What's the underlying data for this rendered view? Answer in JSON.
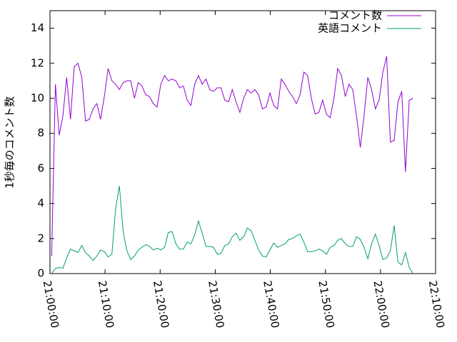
{
  "chart_data": {
    "type": "line",
    "ylabel": "1秒毎のコメント数",
    "legend": "top-right",
    "grid": false,
    "xlim": [
      75600,
      79800
    ],
    "xticks": [
      {
        "value": 75600,
        "label": "21:00:00"
      },
      {
        "value": 76200,
        "label": "21:10:00"
      },
      {
        "value": 76800,
        "label": "21:20:00"
      },
      {
        "value": 77400,
        "label": "21:30:00"
      },
      {
        "value": 78000,
        "label": "21:40:00"
      },
      {
        "value": 78600,
        "label": "21:50:00"
      },
      {
        "value": 79200,
        "label": "22:00:00"
      },
      {
        "value": 79800,
        "label": "22:10:00"
      }
    ],
    "ylim": [
      0,
      15
    ],
    "yticks": [
      0,
      2,
      4,
      6,
      8,
      10,
      12,
      14
    ],
    "x": [
      75618,
      75659,
      75700,
      75741,
      75782,
      75823,
      75864,
      75905,
      75946,
      75987,
      76028,
      76069,
      76110,
      76151,
      76192,
      76233,
      76274,
      76315,
      76356,
      76397,
      76438,
      76479,
      76520,
      76561,
      76602,
      76643,
      76684,
      76725,
      76766,
      76807,
      76848,
      76889,
      76930,
      76971,
      77012,
      77053,
      77094,
      77135,
      77176,
      77217,
      77258,
      77299,
      77340,
      77381,
      77422,
      77463,
      77504,
      77545,
      77586,
      77627,
      77668,
      77709,
      77750,
      77791,
      77832,
      77873,
      77914,
      77955,
      77996,
      78037,
      78078,
      78119,
      78160,
      78201,
      78242,
      78283,
      78324,
      78365,
      78406,
      78447,
      78488,
      78529,
      78570,
      78611,
      78652,
      78693,
      78734,
      78775,
      78816,
      78857,
      78898,
      78939,
      78980,
      79021,
      79062,
      79103,
      79144,
      79185,
      79226,
      79267,
      79308,
      79349,
      79390,
      79431,
      79472,
      79513,
      79554
    ],
    "series": [
      {
        "name": "コメント数",
        "color": "#9400d3",
        "values": [
          1.0,
          10.8,
          7.9,
          9.0,
          11.2,
          8.8,
          11.8,
          12.0,
          11.2,
          8.7,
          8.8,
          9.4,
          9.7,
          8.8,
          10.1,
          11.7,
          11.0,
          10.8,
          10.5,
          10.9,
          11.0,
          11.0,
          10.0,
          10.9,
          10.7,
          10.2,
          10.1,
          9.7,
          9.5,
          10.8,
          11.3,
          11.0,
          11.1,
          11.0,
          10.6,
          10.7,
          9.9,
          9.6,
          10.8,
          11.3,
          10.8,
          11.1,
          10.5,
          10.4,
          10.6,
          10.6,
          9.9,
          9.8,
          10.5,
          9.8,
          9.2,
          10.0,
          10.5,
          10.3,
          10.5,
          10.2,
          9.4,
          9.5,
          10.3,
          9.6,
          9.4,
          11.1,
          10.8,
          10.4,
          10.1,
          9.7,
          10.2,
          11.5,
          11.3,
          10.0,
          9.1,
          9.2,
          9.9,
          9.1,
          8.9,
          10.0,
          11.7,
          11.3,
          10.1,
          10.8,
          10.5,
          9.0,
          7.2,
          9.0,
          11.2,
          10.5,
          9.4,
          9.9,
          11.5,
          12.4,
          7.5,
          7.6,
          9.8,
          10.4,
          5.8,
          9.9,
          10.0
        ]
      },
      {
        "name": "英語コメント",
        "color": "#009e73",
        "values": [
          0.0,
          0.3,
          0.35,
          0.3,
          0.9,
          1.4,
          1.3,
          1.2,
          1.6,
          1.2,
          1.0,
          0.75,
          1.0,
          1.35,
          1.25,
          0.95,
          1.1,
          3.7,
          5.0,
          2.4,
          1.3,
          0.8,
          1.0,
          1.35,
          1.5,
          1.65,
          1.55,
          1.35,
          1.45,
          1.35,
          1.5,
          2.35,
          2.4,
          1.7,
          1.4,
          1.4,
          1.8,
          1.7,
          2.2,
          3.0,
          2.3,
          1.55,
          1.55,
          1.5,
          1.1,
          1.15,
          1.6,
          1.7,
          2.1,
          2.3,
          1.9,
          2.1,
          2.6,
          2.45,
          1.9,
          1.35,
          1.0,
          0.95,
          1.35,
          1.75,
          1.5,
          1.6,
          1.7,
          1.95,
          2.0,
          2.15,
          2.25,
          1.8,
          1.25,
          1.25,
          1.3,
          1.4,
          1.3,
          1.1,
          1.5,
          1.6,
          1.9,
          2.0,
          1.7,
          1.55,
          1.55,
          2.1,
          1.95,
          1.5,
          0.85,
          1.7,
          2.25,
          1.6,
          0.8,
          0.9,
          1.3,
          2.75,
          0.65,
          0.5,
          1.2,
          0.35,
          0.0
        ]
      }
    ]
  }
}
